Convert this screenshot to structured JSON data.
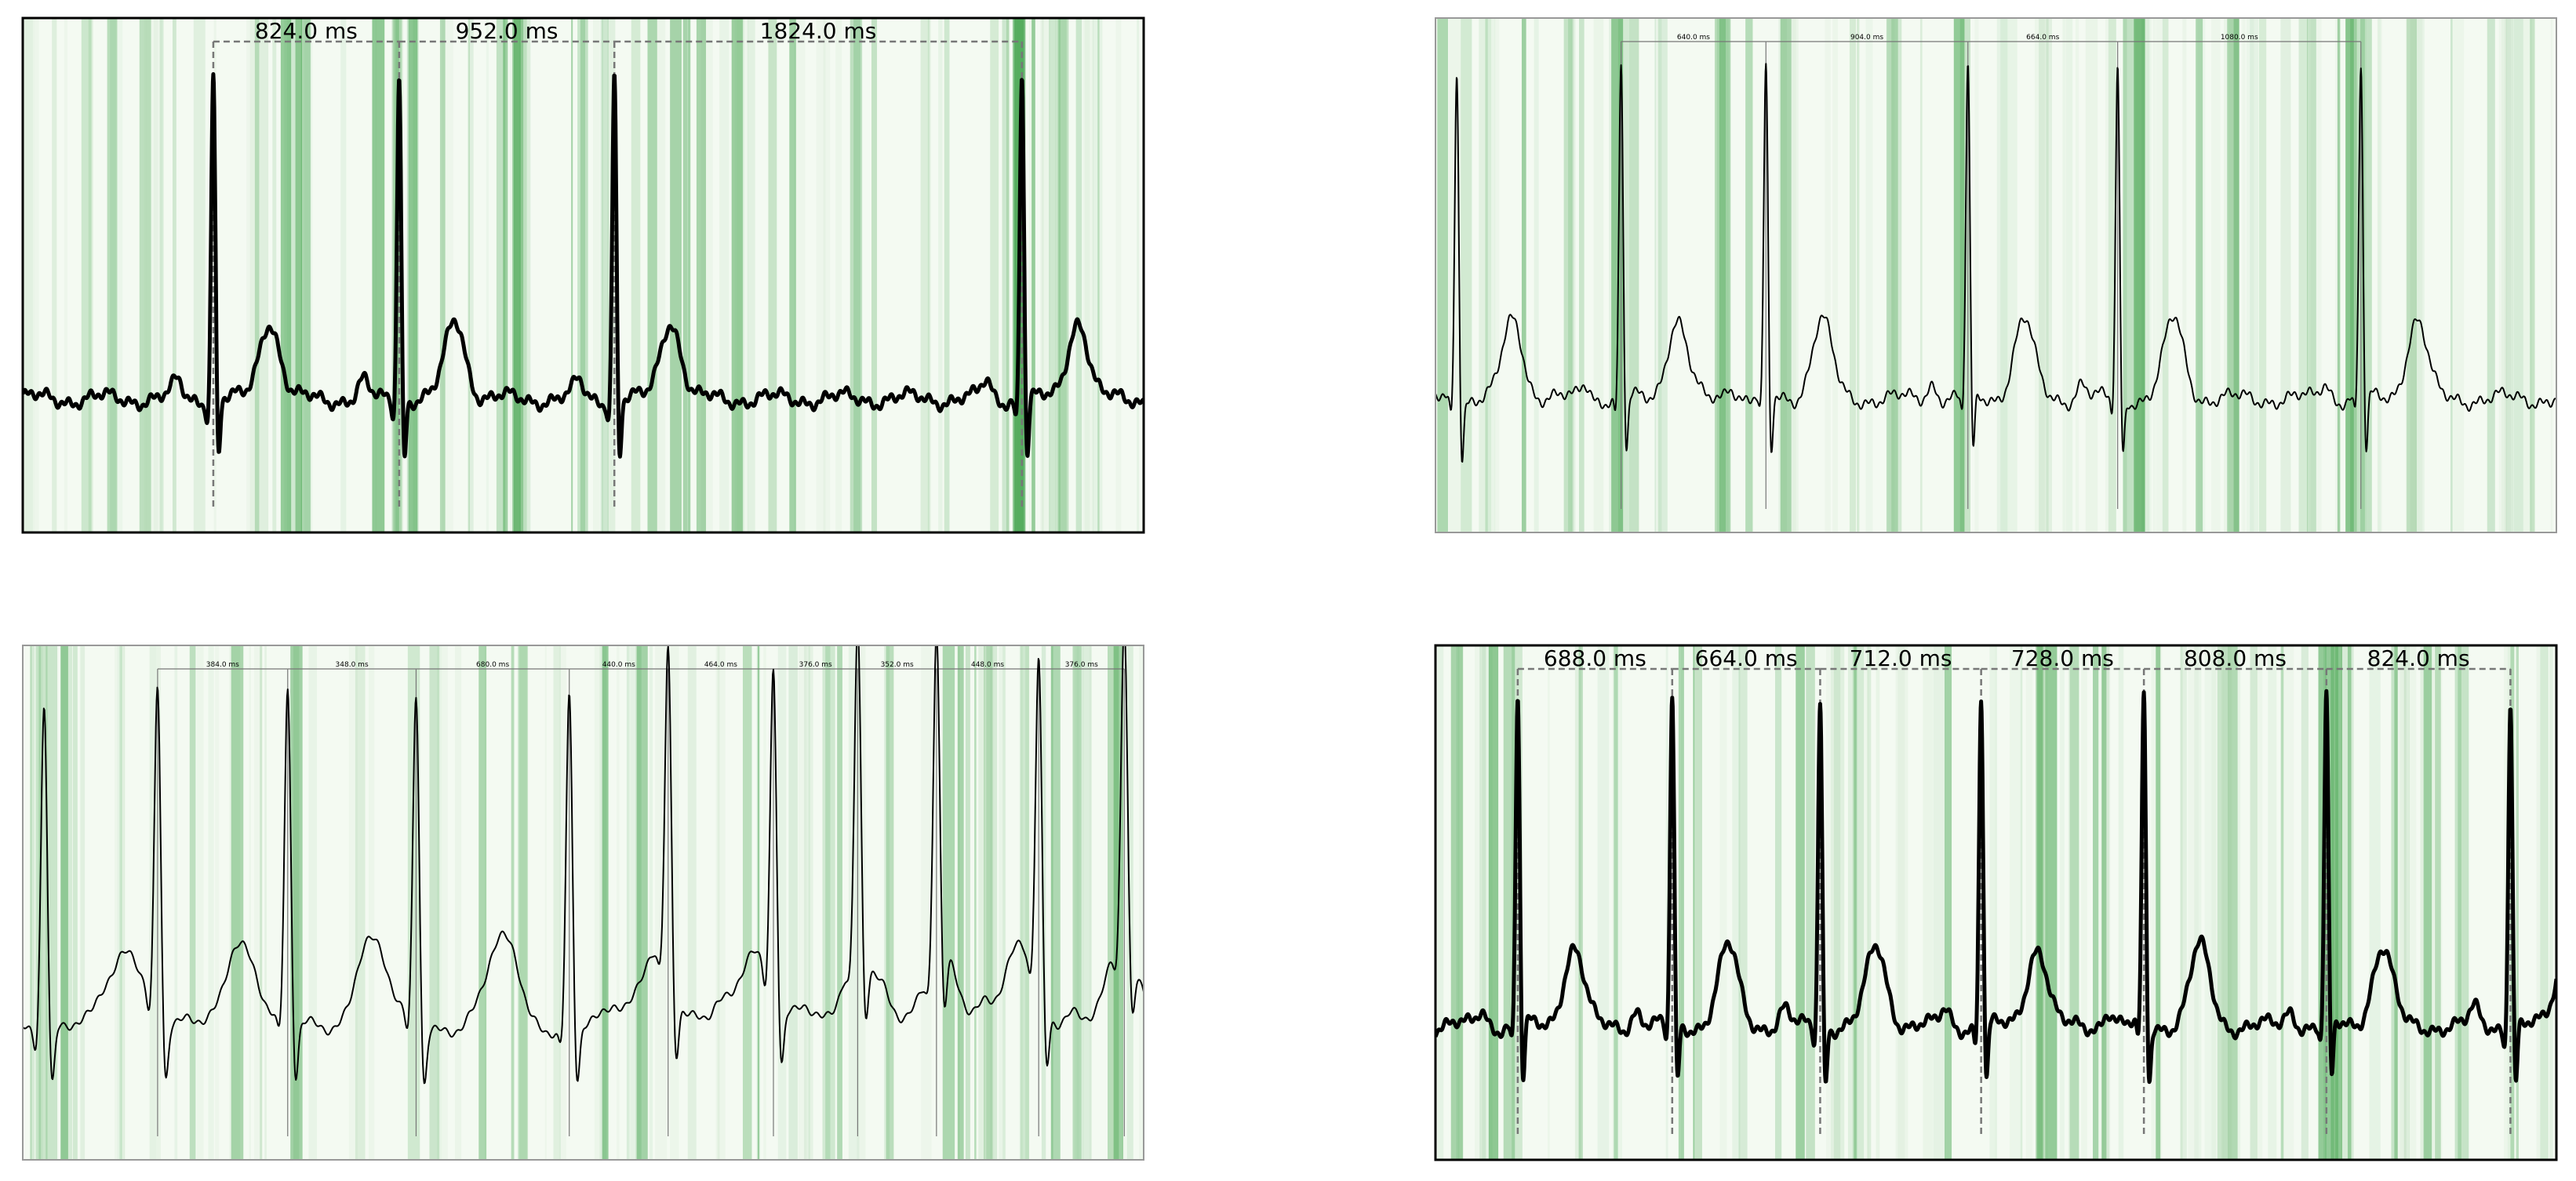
{
  "chart_data": [
    {
      "type": "ecg",
      "bold": true,
      "xlim": [
        0,
        5000
      ],
      "peaks": [
        850,
        1679,
        2639,
        4457
      ],
      "intervals": [
        {
          "value": 824,
          "label": "824.0 ms"
        },
        {
          "value": 952,
          "label": "952.0 ms"
        },
        {
          "value": 1824,
          "label": "1824.0 ms"
        }
      ]
    },
    {
      "type": "ecg",
      "bold": false,
      "xlim": [
        0,
        5000
      ],
      "peaks": [
        95,
        828,
        1474,
        2375,
        3043,
        4128
      ],
      "intervals": [
        {
          "value": 640,
          "label": "640.0 ms"
        },
        {
          "value": 904,
          "label": "904.0 ms"
        },
        {
          "value": 664,
          "label": "664.0 ms"
        },
        {
          "value": 1080,
          "label": "1080.0 ms"
        }
      ]
    },
    {
      "type": "ecg",
      "bold": false,
      "xlim": [
        0,
        3300
      ],
      "peaks": [
        63,
        397,
        780,
        1158,
        1609,
        1900,
        2210,
        2458,
        2690,
        2991,
        3243
      ],
      "intervals": [
        {
          "value": 384,
          "label": "384.0 ms"
        },
        {
          "value": 348,
          "label": "348.0 ms"
        },
        {
          "value": 680,
          "label": "680.0 ms"
        },
        {
          "value": 440,
          "label": "440.0 ms"
        },
        {
          "value": 464,
          "label": "464.0 ms"
        },
        {
          "value": 376,
          "label": "376.0 ms"
        },
        {
          "value": 352,
          "label": "352.0 ms"
        },
        {
          "value": 448,
          "label": "448.0 ms"
        },
        {
          "value": 376,
          "label": "376.0 ms"
        }
      ]
    },
    {
      "type": "ecg",
      "bold": true,
      "xlim": [
        0,
        5000
      ],
      "peaks": [
        367,
        1056,
        1716,
        2434,
        3160,
        3974,
        4795
      ],
      "intervals": [
        {
          "value": 688,
          "label": "688.0 ms"
        },
        {
          "value": 664,
          "label": "664.0 ms"
        },
        {
          "value": 712,
          "label": "712.0 ms"
        },
        {
          "value": 728,
          "label": "728.0 ms"
        },
        {
          "value": 808,
          "label": "808.0 ms"
        },
        {
          "value": 824,
          "label": "824.0 ms"
        }
      ]
    }
  ]
}
